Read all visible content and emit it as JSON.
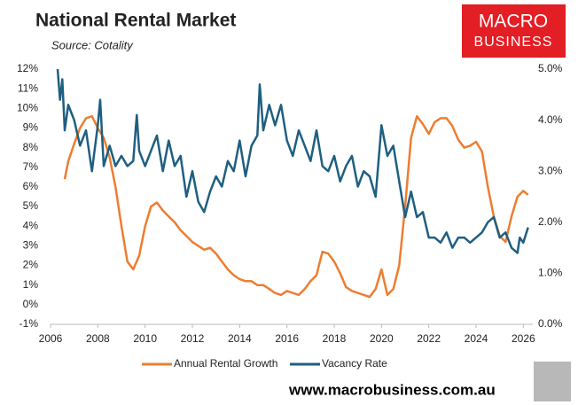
{
  "chart_data": {
    "type": "line",
    "title": "National Rental Market",
    "subtitle": "Source: Cotality",
    "xlim": [
      2006,
      2026.4
    ],
    "xticks": [
      2006,
      2008,
      2010,
      2012,
      2014,
      2016,
      2018,
      2020,
      2022,
      2024,
      2026
    ],
    "ylim": [
      -1,
      12
    ],
    "yticks": [
      {
        "value": -1,
        "label": "-1%"
      },
      {
        "value": 0,
        "label": "0%"
      },
      {
        "value": 1,
        "label": "1%"
      },
      {
        "value": 2,
        "label": "2%"
      },
      {
        "value": 3,
        "label": "3%"
      },
      {
        "value": 4,
        "label": "4%"
      },
      {
        "value": 5,
        "label": "5%"
      },
      {
        "value": 6,
        "label": "6%"
      },
      {
        "value": 7,
        "label": "7%"
      },
      {
        "value": 8,
        "label": "8%"
      },
      {
        "value": 9,
        "label": "9%"
      },
      {
        "value": 10,
        "label": "10%"
      },
      {
        "value": 11,
        "label": "11%"
      },
      {
        "value": 12,
        "label": "12%"
      }
    ],
    "y2lim": [
      0,
      5
    ],
    "y2ticks": [
      {
        "value": 0,
        "label": "0.0%"
      },
      {
        "value": 1,
        "label": "1.0%"
      },
      {
        "value": 2,
        "label": "2.0%"
      },
      {
        "value": 3,
        "label": "3.0%"
      },
      {
        "value": 4,
        "label": "4.0%"
      },
      {
        "value": 5,
        "label": "5.0%"
      }
    ],
    "grid": false,
    "legend": "bottom",
    "series": [
      {
        "name": "Annual Rental Growth",
        "color": "#ed7d31",
        "x": [
          2006.6,
          2006.75,
          2007.0,
          2007.25,
          2007.5,
          2007.75,
          2008.0,
          2008.25,
          2008.5,
          2008.75,
          2009.0,
          2009.25,
          2009.5,
          2009.75,
          2010.0,
          2010.25,
          2010.5,
          2010.75,
          2011.0,
          2011.25,
          2011.5,
          2011.75,
          2012.0,
          2012.25,
          2012.5,
          2012.75,
          2013.0,
          2013.25,
          2013.5,
          2013.75,
          2014.0,
          2014.25,
          2014.5,
          2014.75,
          2015.0,
          2015.25,
          2015.5,
          2015.75,
          2016.0,
          2016.25,
          2016.5,
          2016.75,
          2017.0,
          2017.25,
          2017.5,
          2017.75,
          2018.0,
          2018.25,
          2018.5,
          2018.75,
          2019.0,
          2019.25,
          2019.5,
          2019.75,
          2020.0,
          2020.25,
          2020.5,
          2020.75,
          2021.0,
          2021.25,
          2021.5,
          2021.75,
          2022.0,
          2022.25,
          2022.5,
          2022.75,
          2023.0,
          2023.25,
          2023.5,
          2023.75,
          2024.0,
          2024.25,
          2024.5,
          2024.75,
          2025.0,
          2025.25,
          2025.5,
          2025.75,
          2026.0,
          2026.2
        ],
        "values": [
          6.4,
          7.3,
          8.2,
          9.0,
          9.5,
          9.6,
          9.0,
          8.5,
          7.5,
          6.0,
          4.0,
          2.2,
          1.8,
          2.5,
          4.0,
          5.0,
          5.2,
          4.8,
          4.5,
          4.2,
          3.8,
          3.5,
          3.2,
          3.0,
          2.8,
          2.9,
          2.6,
          2.2,
          1.8,
          1.5,
          1.3,
          1.2,
          1.2,
          1.0,
          1.0,
          0.8,
          0.6,
          0.5,
          0.7,
          0.6,
          0.5,
          0.8,
          1.2,
          1.5,
          2.7,
          2.6,
          2.2,
          1.6,
          0.9,
          0.7,
          0.6,
          0.5,
          0.4,
          0.8,
          1.8,
          0.5,
          0.8,
          2.0,
          5.0,
          8.5,
          9.6,
          9.2,
          8.7,
          9.3,
          9.5,
          9.5,
          9.1,
          8.4,
          8.0,
          8.1,
          8.3,
          7.8,
          6.0,
          4.5,
          3.5,
          3.2,
          4.5,
          5.5,
          5.8,
          5.6
        ]
      },
      {
        "name": "Vacancy Rate",
        "color": "#1f5f80",
        "axis": "y2",
        "x": [
          2006.3,
          2006.4,
          2006.5,
          2006.6,
          2006.75,
          2007.0,
          2007.25,
          2007.5,
          2007.75,
          2008.0,
          2008.1,
          2008.25,
          2008.5,
          2008.75,
          2009.0,
          2009.25,
          2009.5,
          2009.65,
          2009.75,
          2010.0,
          2010.25,
          2010.5,
          2010.75,
          2011.0,
          2011.25,
          2011.5,
          2011.75,
          2012.0,
          2012.25,
          2012.5,
          2012.75,
          2013.0,
          2013.25,
          2013.5,
          2013.75,
          2014.0,
          2014.25,
          2014.5,
          2014.75,
          2014.85,
          2015.0,
          2015.25,
          2015.5,
          2015.75,
          2016.0,
          2016.25,
          2016.5,
          2016.75,
          2017.0,
          2017.25,
          2017.5,
          2017.75,
          2018.0,
          2018.25,
          2018.5,
          2018.75,
          2019.0,
          2019.25,
          2019.5,
          2019.75,
          2020.0,
          2020.25,
          2020.5,
          2020.75,
          2021.0,
          2021.25,
          2021.5,
          2021.75,
          2022.0,
          2022.25,
          2022.5,
          2022.75,
          2023.0,
          2023.25,
          2023.5,
          2023.75,
          2024.0,
          2024.25,
          2024.5,
          2024.75,
          2025.0,
          2025.25,
          2025.5,
          2025.75,
          2025.85,
          2026.0,
          2026.2
        ],
        "values": [
          5.0,
          4.4,
          4.8,
          3.8,
          4.3,
          4.0,
          3.5,
          3.8,
          3.0,
          3.9,
          4.4,
          3.1,
          3.5,
          3.1,
          3.3,
          3.1,
          3.2,
          4.1,
          3.4,
          3.1,
          3.4,
          3.7,
          3.0,
          3.6,
          3.1,
          3.3,
          2.5,
          3.0,
          2.4,
          2.2,
          2.6,
          2.9,
          2.7,
          3.2,
          3.0,
          3.6,
          2.9,
          3.5,
          3.7,
          4.7,
          3.8,
          4.3,
          3.9,
          4.3,
          3.6,
          3.3,
          3.8,
          3.5,
          3.2,
          3.8,
          3.1,
          3.0,
          3.3,
          2.8,
          3.1,
          3.3,
          2.7,
          3.0,
          2.9,
          2.5,
          3.9,
          3.3,
          3.5,
          2.8,
          2.1,
          2.6,
          2.1,
          2.2,
          1.7,
          1.7,
          1.6,
          1.8,
          1.5,
          1.7,
          1.7,
          1.6,
          1.7,
          1.8,
          2.0,
          2.1,
          1.7,
          1.8,
          1.5,
          1.4,
          1.7,
          1.6,
          1.9
        ]
      }
    ]
  },
  "logo": [
    "MACRO",
    "BUSINESS"
  ],
  "footer": "www.macrobusiness.com.au"
}
